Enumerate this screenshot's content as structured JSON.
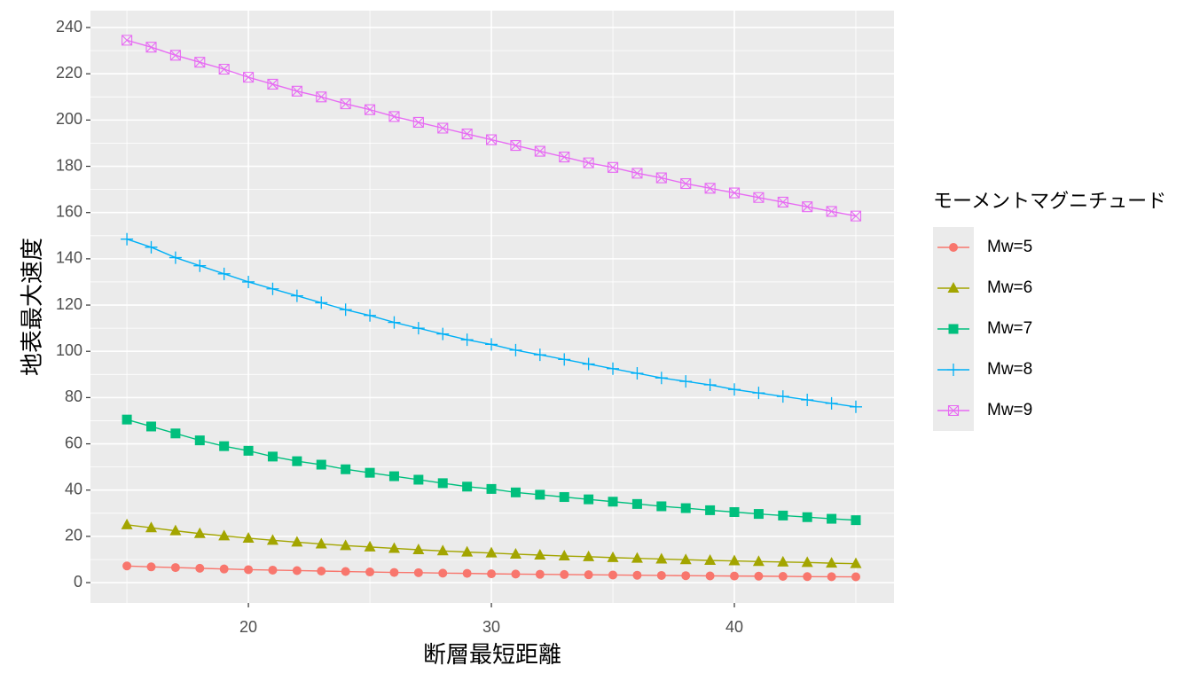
{
  "chart_data": {
    "type": "line",
    "x_label": "断層最短距離",
    "y_label": "地表最大速度",
    "legend_title": "モーメントマグニチュード",
    "legend_position": "right",
    "grid": true,
    "x": [
      15,
      16,
      17,
      18,
      19,
      20,
      21,
      22,
      23,
      24,
      25,
      26,
      27,
      28,
      29,
      30,
      31,
      32,
      33,
      34,
      35,
      36,
      37,
      38,
      39,
      40,
      41,
      42,
      43,
      44,
      45
    ],
    "xlim": [
      13.5,
      46.57
    ],
    "xticks": [
      20,
      30,
      40
    ],
    "ylim": [
      -8.8,
      247.3
    ],
    "yticks": [
      0,
      20,
      40,
      60,
      80,
      100,
      120,
      140,
      160,
      180,
      200,
      220,
      240
    ],
    "series": [
      {
        "name": "Mw=5",
        "color": "#F8766D",
        "shape": "circle",
        "values": [
          7.2,
          6.8,
          6.5,
          6.2,
          5.9,
          5.6,
          5.4,
          5.2,
          5,
          4.8,
          4.6,
          4.4,
          4.3,
          4.1,
          4,
          3.8,
          3.7,
          3.6,
          3.5,
          3.4,
          3.3,
          3.2,
          3.1,
          3,
          2.9,
          2.85,
          2.8,
          2.7,
          2.6,
          2.55,
          2.5
        ]
      },
      {
        "name": "Mw=6",
        "color": "#A3A500",
        "shape": "triangle",
        "values": [
          25,
          23.7,
          22.4,
          21.2,
          20.2,
          19.2,
          18.3,
          17.5,
          16.7,
          16,
          15.4,
          14.8,
          14.2,
          13.7,
          13.2,
          12.8,
          12.3,
          11.9,
          11.5,
          11.2,
          10.8,
          10.5,
          10.2,
          9.9,
          9.6,
          9.4,
          9.1,
          8.9,
          8.7,
          8.4,
          8.2
        ]
      },
      {
        "name": "Mw=7",
        "color": "#00BF7D",
        "shape": "square",
        "values": [
          70.5,
          67.5,
          64.5,
          61.5,
          59,
          57,
          54.5,
          52.5,
          51,
          49,
          47.5,
          46,
          44.5,
          43,
          41.5,
          40.5,
          39,
          38,
          37,
          36,
          35,
          34,
          33,
          32.2,
          31.3,
          30.5,
          29.7,
          29,
          28.3,
          27.6,
          27
        ]
      },
      {
        "name": "Mw=8",
        "color": "#00B0F6",
        "shape": "plus",
        "values": [
          148.5,
          145,
          140.5,
          137,
          133.5,
          130,
          127,
          124,
          121,
          118,
          115.5,
          112.5,
          110,
          107.5,
          105,
          103,
          100.5,
          98.5,
          96.5,
          94.5,
          92.5,
          90.5,
          88.5,
          87,
          85.5,
          83.5,
          82,
          80.5,
          79,
          77.5,
          76
        ]
      },
      {
        "name": "Mw=9",
        "color": "#E76BF3",
        "shape": "square-cross",
        "values": [
          234.5,
          231.5,
          228,
          225,
          222,
          218.5,
          215.5,
          212.5,
          210,
          207,
          204.5,
          201.5,
          199,
          196.5,
          194,
          191.5,
          189,
          186.5,
          184,
          181.5,
          179.5,
          177,
          175,
          172.5,
          170.5,
          168.5,
          166.5,
          164.5,
          162.5,
          160.5,
          158.5
        ]
      }
    ]
  }
}
